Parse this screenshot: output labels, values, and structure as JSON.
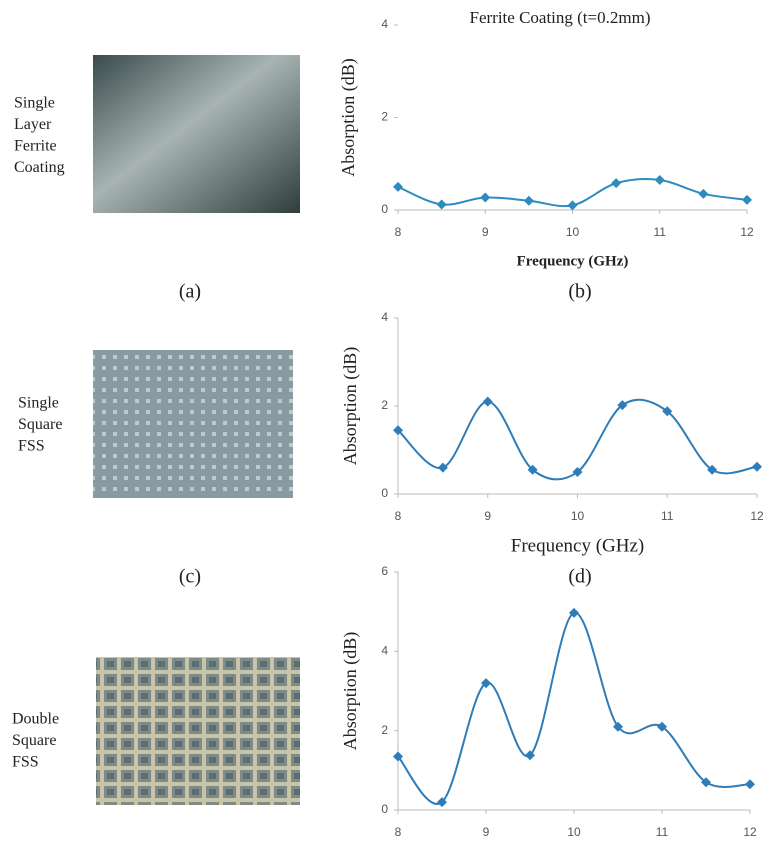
{
  "photo_labels": [
    [
      "Single",
      "Layer",
      "Ferrite",
      "Coating"
    ],
    [
      "Single",
      "Square",
      "FSS"
    ],
    [
      "Double",
      "Square",
      "FSS"
    ]
  ],
  "captions": [
    "(a)",
    "(b)",
    "(c)",
    "(d)"
  ],
  "chart_data": [
    {
      "type": "line",
      "title": "Ferrite Coating (t=0.2mm)",
      "x_label": "Frequency (GHz)",
      "y_label": "Absorption (dB)",
      "x": [
        8,
        8.5,
        9,
        9.5,
        10,
        10.5,
        11,
        11.5,
        12
      ],
      "series": [
        {
          "color": "#2e8bc0",
          "values": [
            0.5,
            0.12,
            0.27,
            0.2,
            0.1,
            0.58,
            0.65,
            0.35,
            0.22
          ]
        }
      ],
      "xlim": [
        8,
        12
      ],
      "xticks": [
        8,
        9,
        10,
        11,
        12
      ],
      "ylim": [
        0,
        4
      ],
      "yticks": [
        0,
        2,
        4
      ]
    },
    {
      "type": "line",
      "x_label": "Frequency (GHz)",
      "y_label": "Absorption (dB)",
      "x": [
        8,
        8.5,
        9,
        9.5,
        10,
        10.5,
        11,
        11.5,
        12
      ],
      "series": [
        {
          "color": "#2e7cb8",
          "values": [
            1.45,
            0.6,
            2.1,
            0.55,
            0.5,
            2.02,
            1.88,
            0.55,
            0.62
          ]
        }
      ],
      "xlim": [
        8,
        12
      ],
      "xticks": [
        8,
        9,
        10,
        11,
        12
      ],
      "ylim": [
        0,
        4
      ],
      "yticks": [
        0,
        2,
        4
      ]
    },
    {
      "type": "line",
      "y_label": "Absorption (dB)",
      "x": [
        8,
        8.5,
        9,
        9.5,
        10,
        10.5,
        11,
        11.5,
        12
      ],
      "series": [
        {
          "color": "#2e7cb8",
          "values": [
            1.35,
            0.2,
            3.2,
            1.38,
            4.97,
            2.1,
            2.1,
            0.7,
            0.65
          ]
        }
      ],
      "xlim": [
        8,
        12
      ],
      "xticks": [
        8,
        9,
        10,
        11,
        12
      ],
      "ylim": [
        0,
        6
      ],
      "yticks": [
        0,
        2,
        4,
        6
      ]
    }
  ]
}
